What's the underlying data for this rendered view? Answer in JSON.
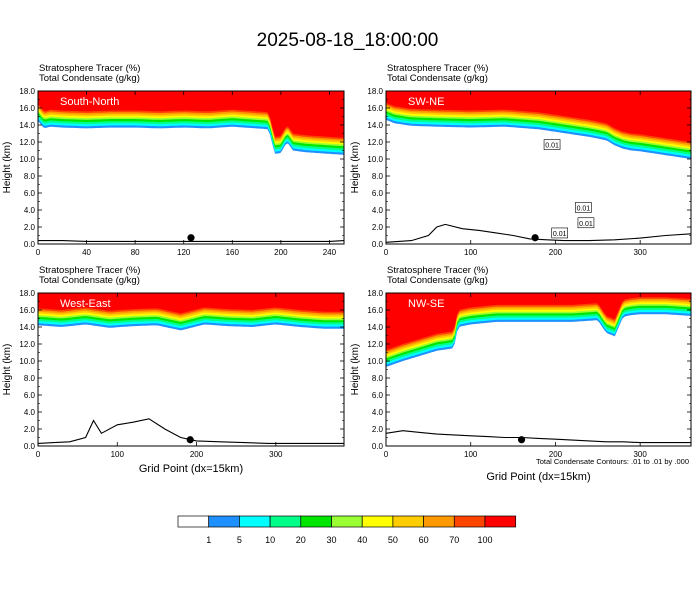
{
  "title": "2025-08-18_18:00:00",
  "contour_note": "Total Condensate Contours: .01 to .01 by .000",
  "chart_data": [
    {
      "type": "area",
      "name": "South-North",
      "header": [
        "Stratosphere Tracer   (%)",
        "Total Condensate   (g/kg)"
      ],
      "ylabel": "Height (km)",
      "xlabel": "",
      "xlim": [
        0,
        252
      ],
      "ylim": [
        0,
        18
      ],
      "xticks": [
        0,
        40,
        80,
        120,
        160,
        200,
        240
      ],
      "yticks": [
        0.0,
        2.0,
        4.0,
        6.0,
        8.0,
        10.0,
        12.0,
        14.0,
        16.0,
        18.0
      ],
      "tracer_base": {
        "x": [
          0,
          5,
          10,
          20,
          40,
          60,
          80,
          100,
          120,
          140,
          160,
          180,
          190,
          195,
          200,
          205,
          210,
          220,
          240,
          252
        ],
        "y": [
          14.5,
          13.6,
          13.8,
          13.7,
          13.6,
          13.7,
          13.7,
          13.6,
          13.7,
          13.6,
          13.8,
          13.6,
          13.5,
          10.6,
          10.7,
          12.0,
          11.0,
          10.8,
          10.6,
          10.5
        ]
      },
      "terrain": {
        "x": [
          0,
          20,
          40,
          60,
          80,
          100,
          120,
          140,
          160,
          180,
          200,
          220,
          240,
          252
        ],
        "y": [
          0.4,
          0.4,
          0.3,
          0.3,
          0.3,
          0.3,
          0.3,
          0.3,
          0.3,
          0.3,
          0.3,
          0.3,
          0.3,
          0.4
        ]
      },
      "marker_x": 126
    },
    {
      "type": "area",
      "name": "SW-NE",
      "header": [
        "Stratosphere Tracer   (%)",
        "Total Condensate   (g/kg)"
      ],
      "ylabel": "Height (km)",
      "xlabel": "",
      "xlim": [
        0,
        360
      ],
      "ylim": [
        0,
        18
      ],
      "xticks": [
        0,
        100,
        200,
        300
      ],
      "yticks": [
        0.0,
        2.0,
        4.0,
        6.0,
        8.0,
        10.0,
        12.0,
        14.0,
        16.0,
        18.0
      ],
      "tracer_base": {
        "x": [
          0,
          10,
          30,
          60,
          100,
          140,
          180,
          200,
          220,
          240,
          260,
          270,
          280,
          290,
          300,
          320,
          340,
          360
        ],
        "y": [
          14.6,
          14.2,
          13.9,
          13.8,
          13.7,
          13.8,
          13.5,
          13.2,
          12.9,
          12.6,
          12.2,
          11.6,
          11.2,
          11.0,
          10.9,
          10.6,
          10.3,
          10.0
        ]
      },
      "terrain": {
        "x": [
          0,
          30,
          50,
          60,
          70,
          90,
          110,
          130,
          150,
          170,
          190,
          210,
          240,
          270,
          300,
          330,
          360
        ],
        "y": [
          0.2,
          0.4,
          1.0,
          2.0,
          2.3,
          1.8,
          1.6,
          1.3,
          1.0,
          0.6,
          0.5,
          0.4,
          0.4,
          0.5,
          0.7,
          1.0,
          1.2
        ]
      },
      "marker_x": 176,
      "contour_labels": [
        {
          "x": 196,
          "y": 11.7,
          "text": "0.01"
        },
        {
          "x": 233,
          "y": 4.3,
          "text": "0.01"
        },
        {
          "x": 236,
          "y": 2.5,
          "text": "0.01"
        },
        {
          "x": 205,
          "y": 1.3,
          "text": "0.01"
        }
      ]
    },
    {
      "type": "area",
      "name": "West-East",
      "header": [
        "Stratosphere Tracer   (%)",
        "Total Condensate   (g/kg)"
      ],
      "ylabel": "Height (km)",
      "xlabel": "Grid Point (dx=15km)",
      "xlim": [
        0,
        386
      ],
      "ylim": [
        0,
        18
      ],
      "xticks": [
        0,
        100,
        200,
        300
      ],
      "yticks": [
        0.0,
        2.0,
        4.0,
        6.0,
        8.0,
        10.0,
        12.0,
        14.0,
        16.0,
        18.0
      ],
      "tracer_base": {
        "x": [
          0,
          30,
          60,
          90,
          120,
          150,
          180,
          210,
          240,
          270,
          300,
          330,
          360,
          386
        ],
        "y": [
          14.2,
          14.0,
          14.3,
          13.9,
          14.1,
          14.2,
          13.6,
          14.3,
          14.1,
          14.0,
          14.3,
          14.0,
          13.8,
          13.8
        ]
      },
      "terrain": {
        "x": [
          0,
          20,
          40,
          60,
          70,
          80,
          100,
          120,
          140,
          160,
          180,
          200,
          230,
          260,
          290,
          320,
          386
        ],
        "y": [
          0.3,
          0.4,
          0.5,
          1.0,
          3.0,
          1.5,
          2.5,
          2.8,
          3.2,
          2.0,
          1.0,
          0.6,
          0.5,
          0.4,
          0.3,
          0.3,
          0.3
        ]
      },
      "marker_x": 192
    },
    {
      "type": "area",
      "name": "NW-SE",
      "header": [
        "Stratosphere Tracer   (%)",
        "Total Condensate   (g/kg)"
      ],
      "ylabel": "Height (km)",
      "xlabel": "Grid Point (dx=15km)",
      "xlim": [
        0,
        360
      ],
      "ylim": [
        0,
        18
      ],
      "xticks": [
        0,
        100,
        200,
        300
      ],
      "yticks": [
        0.0,
        2.0,
        4.0,
        6.0,
        8.0,
        10.0,
        12.0,
        14.0,
        16.0,
        18.0
      ],
      "tracer_base": {
        "x": [
          0,
          20,
          40,
          60,
          80,
          85,
          100,
          130,
          160,
          190,
          220,
          250,
          260,
          270,
          280,
          290,
          300,
          330,
          360
        ],
        "y": [
          9.3,
          10.0,
          10.6,
          11.2,
          11.5,
          14.0,
          14.3,
          14.6,
          14.6,
          14.6,
          14.6,
          14.8,
          13.3,
          12.9,
          15.2,
          15.4,
          15.5,
          15.5,
          15.3
        ]
      },
      "terrain": {
        "x": [
          0,
          20,
          40,
          60,
          80,
          100,
          120,
          140,
          160,
          180,
          200,
          220,
          240,
          260,
          280,
          300,
          330,
          360
        ],
        "y": [
          1.5,
          1.8,
          1.6,
          1.4,
          1.3,
          1.2,
          1.1,
          1.0,
          1.0,
          0.9,
          0.8,
          0.7,
          0.6,
          0.5,
          0.5,
          0.4,
          0.4,
          0.4
        ]
      },
      "marker_x": 160
    }
  ],
  "colorbar": {
    "levels": [
      "1",
      "5",
      "10",
      "20",
      "30",
      "40",
      "50",
      "60",
      "70",
      "100"
    ],
    "colors": [
      "#ffffff",
      "#1e90ff",
      "#00ffff",
      "#00ff88",
      "#00e600",
      "#9aff33",
      "#ffff00",
      "#ffcc00",
      "#ff9900",
      "#ff4400",
      "#ff0000"
    ]
  }
}
